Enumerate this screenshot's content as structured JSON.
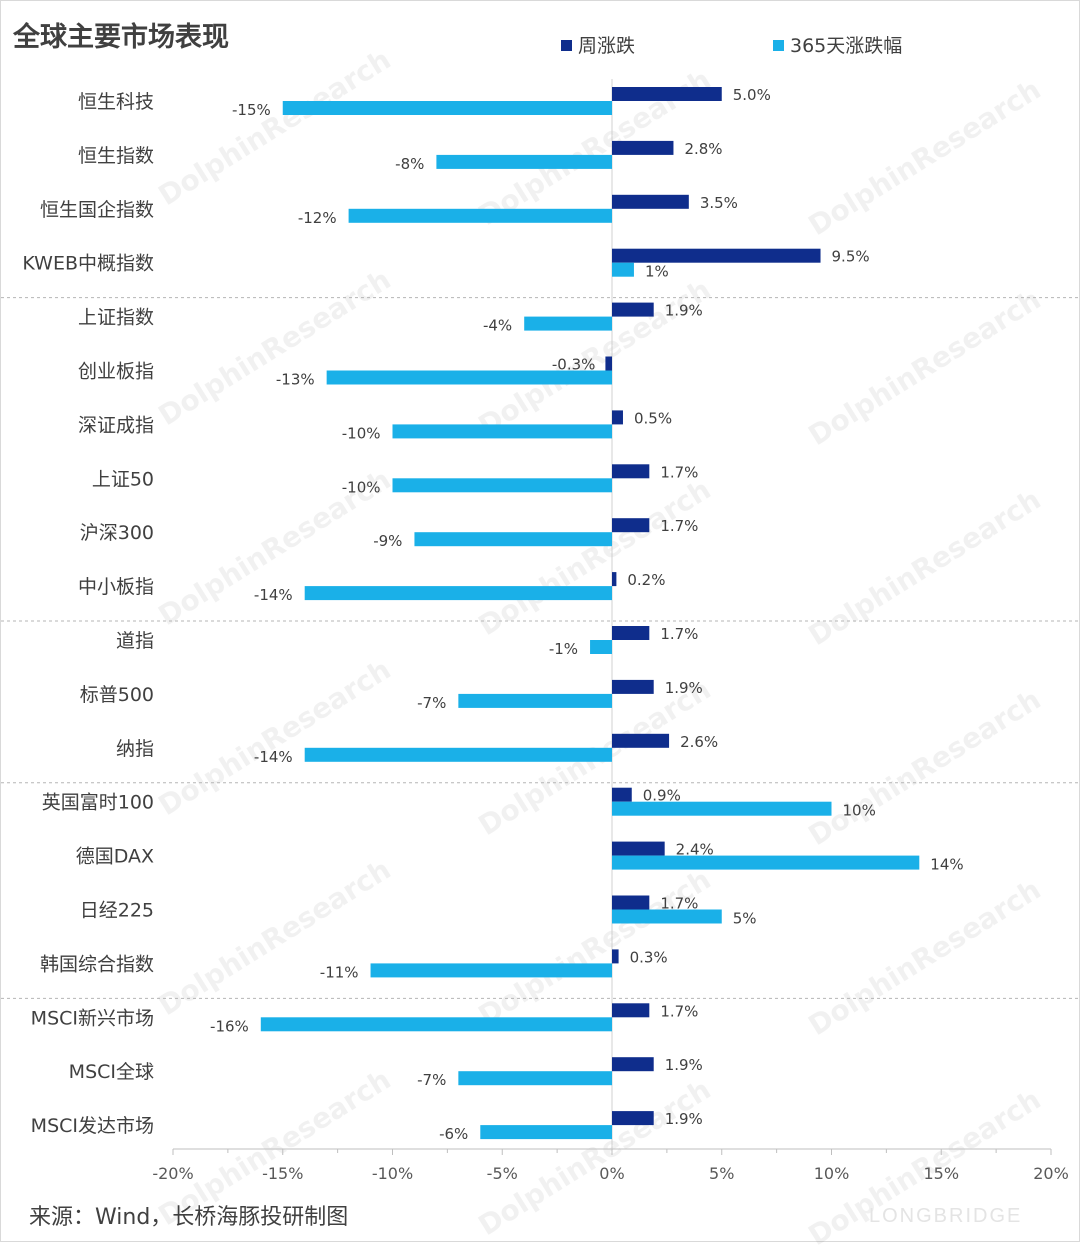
{
  "chart_data": {
    "type": "bar",
    "orientation": "horizontal",
    "title": "全球主要市场表现",
    "categories": [
      "恒生科技",
      "恒生指数",
      "恒生国企指数",
      "KWEB中概指数",
      "上证指数",
      "创业板指",
      "深证成指",
      "上证50",
      "沪深300",
      "中小板指",
      "道指",
      "标普500",
      "纳指",
      "英国富时100",
      "德国DAX",
      "日经225",
      "韩国综合指数",
      "MSCI新兴市场",
      "MSCI全球",
      "MSCI发达市场"
    ],
    "series": [
      {
        "name": "周涨跌",
        "color": "#0f2d8c",
        "values": [
          5.0,
          2.8,
          3.5,
          9.5,
          1.9,
          -0.3,
          0.5,
          1.7,
          1.7,
          0.2,
          1.7,
          1.9,
          2.6,
          0.9,
          2.4,
          1.7,
          0.3,
          1.7,
          1.9,
          1.9
        ],
        "labels": [
          "5.0%",
          "2.8%",
          "3.5%",
          "9.5%",
          "1.9%",
          "-0.3%",
          "0.5%",
          "1.7%",
          "1.7%",
          "0.2%",
          "1.7%",
          "1.9%",
          "2.6%",
          "0.9%",
          "2.4%",
          "1.7%",
          "0.3%",
          "1.7%",
          "1.9%",
          "1.9%"
        ]
      },
      {
        "name": "365天涨跌幅",
        "color": "#1ab0e8",
        "values": [
          -15,
          -8,
          -12,
          1,
          -4,
          -13,
          -10,
          -10,
          -9,
          -14,
          -1,
          -7,
          -14,
          10,
          14,
          5,
          -11,
          -16,
          -7,
          -6
        ],
        "labels": [
          "-15%",
          "-8%",
          "-12%",
          "1%",
          "-4%",
          "-13%",
          "-10%",
          "-10%",
          "-9%",
          "-14%",
          "-1%",
          "-7%",
          "-14%",
          "10%",
          "14%",
          "5%",
          "-11%",
          "-16%",
          "-7%",
          "-6%"
        ]
      }
    ],
    "xlim": [
      -20,
      20
    ],
    "xticks": [
      -20,
      -15,
      -10,
      -5,
      0,
      5,
      10,
      15,
      20
    ],
    "xtick_labels": [
      "-20%",
      "-15%",
      "-10%",
      "-5%",
      "0%",
      "5%",
      "10%",
      "15%",
      "20%"
    ],
    "group_dividers_after": [
      3,
      9,
      12,
      16
    ],
    "legend": "top-right",
    "grid": false
  },
  "source_note": "来源：Wind，长桥海豚投研制图",
  "watermark": {
    "text": "DolphinResearch"
  },
  "brand_mark": "LONGBRIDGE"
}
